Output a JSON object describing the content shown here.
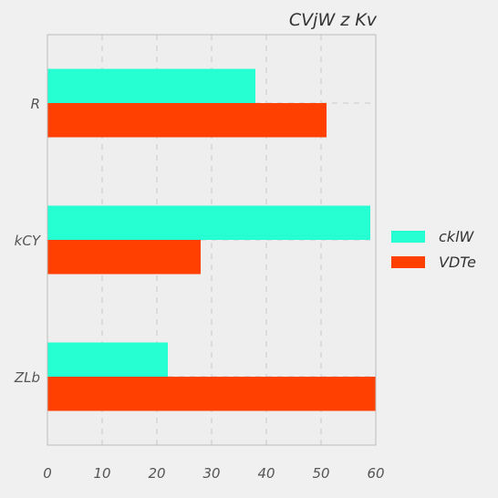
{
  "chart_data": {
    "type": "bar",
    "orientation": "horizontal",
    "title": "CVjW z Kv",
    "categories": [
      "R",
      "kCY",
      "ZLb"
    ],
    "series": [
      {
        "name": "cklW",
        "values": [
          38,
          59,
          22
        ],
        "color": "#26ffd2"
      },
      {
        "name": "VDTe",
        "values": [
          51,
          28,
          60
        ],
        "color": "#ff4000"
      }
    ],
    "xlim": [
      0,
      60
    ],
    "xticks": [
      0,
      10,
      20,
      30,
      40,
      50,
      60
    ],
    "grid": true,
    "legend_position": "right",
    "xlabel": "",
    "ylabel": ""
  }
}
